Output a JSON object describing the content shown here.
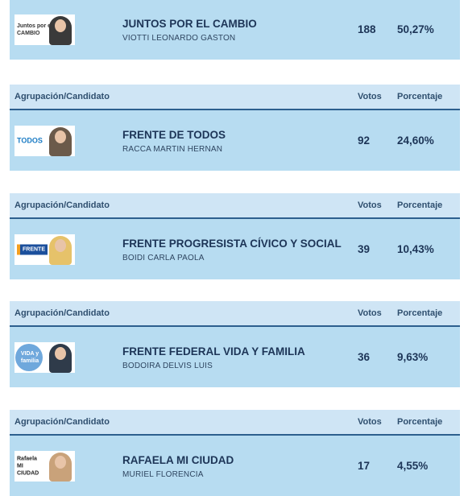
{
  "columns": {
    "group": "Agrupación/Candidato",
    "votes": "Votos",
    "percent": "Porcentaje"
  },
  "results": [
    {
      "party": "JUNTOS POR EL CAMBIO",
      "candidate": "VIOTTI LEONARDO GASTON",
      "votes": "188",
      "percent": "50,27%",
      "logo_text": "Juntos por el CAMBIO",
      "logo_icon": "juntos-por-el-cambio-logo-icon"
    },
    {
      "party": "FRENTE DE TODOS",
      "candidate": "RACCA MARTIN HERNAN",
      "votes": "92",
      "percent": "24,60%",
      "logo_text": "TODOS",
      "logo_icon": "frente-de-todos-logo-icon"
    },
    {
      "party": "FRENTE PROGRESISTA CÍVICO Y SOCIAL",
      "candidate": "BOIDI CARLA PAOLA",
      "votes": "39",
      "percent": "10,43%",
      "logo_text": "FRENTE",
      "logo_icon": "frente-progresista-logo-icon"
    },
    {
      "party": "FRENTE FEDERAL VIDA Y FAMILIA",
      "candidate": "BODOIRA DELVIS LUIS",
      "votes": "36",
      "percent": "9,63%",
      "logo_text": "VIDA y familia",
      "logo_icon": "vida-y-familia-logo-icon"
    },
    {
      "party": "RAFAELA MI CIUDAD",
      "candidate": "MURIEL FLORENCIA",
      "votes": "17",
      "percent": "4,55%",
      "logo_text": "Rafaela MI CIUDAD",
      "logo_icon": "rafaela-mi-ciudad-logo-icon"
    }
  ],
  "colors": {
    "row_bg": "#b7dcf1",
    "header_bg": "#cfe5f5",
    "header_rule": "#2d5f8e",
    "text": "#1d3557"
  }
}
